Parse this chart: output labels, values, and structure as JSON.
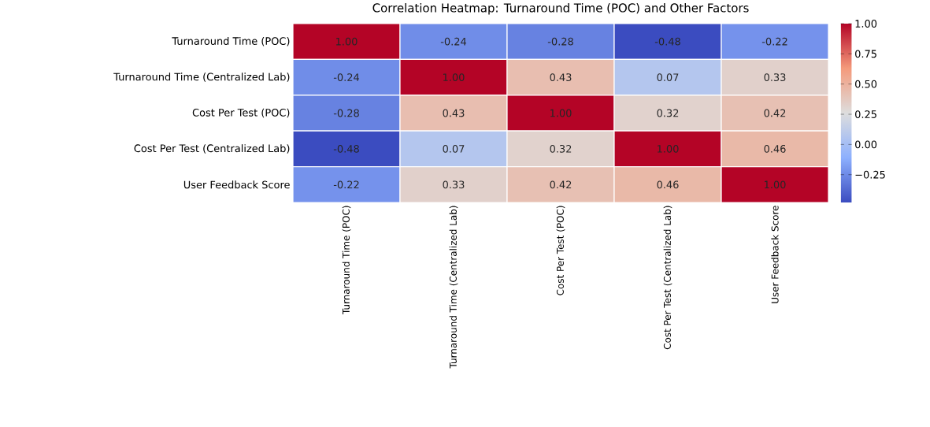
{
  "chart_data": {
    "type": "heatmap",
    "title": "Correlation Heatmap: Turnaround Time (POC) and Other Factors",
    "categories": [
      "Turnaround Time (POC)",
      "Turnaround Time (Centralized Lab)",
      "Cost Per Test (POC)",
      "Cost Per Test (Centralized Lab)",
      "User Feedback Score"
    ],
    "y_categories": [
      "Turnaround Time (POC)",
      "Turnaround Time (Centralized Lab)",
      "Cost Per Test (POC)",
      "Cost Per Test (Centralized Lab)",
      "User Feedback Score"
    ],
    "cells": [
      [
        1.0,
        -0.24,
        -0.28,
        -0.48,
        -0.22
      ],
      [
        -0.24,
        1.0,
        0.43,
        0.07,
        0.33
      ],
      [
        -0.28,
        0.43,
        1.0,
        0.32,
        0.42
      ],
      [
        -0.48,
        0.07,
        0.32,
        1.0,
        0.46
      ],
      [
        -0.22,
        0.33,
        0.42,
        0.46,
        1.0
      ]
    ],
    "cell_labels": [
      [
        "1.00",
        "-0.24",
        "-0.28",
        "-0.48",
        "-0.22"
      ],
      [
        "-0.24",
        "1.00",
        "0.43",
        "0.07",
        "0.33"
      ],
      [
        "-0.28",
        "0.43",
        "1.00",
        "0.32",
        "0.42"
      ],
      [
        "-0.48",
        "0.07",
        "0.32",
        "1.00",
        "0.46"
      ],
      [
        "-0.22",
        "0.33",
        "0.42",
        "0.46",
        "1.00"
      ]
    ],
    "clim": [
      -0.48,
      1.0
    ],
    "cticks": [
      {
        "value": -0.25,
        "label": "−0.25"
      },
      {
        "value": 0,
        "label": "0.00"
      },
      {
        "value": 0.25,
        "label": "0.25"
      },
      {
        "value": 0.5,
        "label": "0.50"
      },
      {
        "value": 0.75,
        "label": "0.75"
      },
      {
        "value": 1,
        "label": "1.00"
      }
    ]
  }
}
